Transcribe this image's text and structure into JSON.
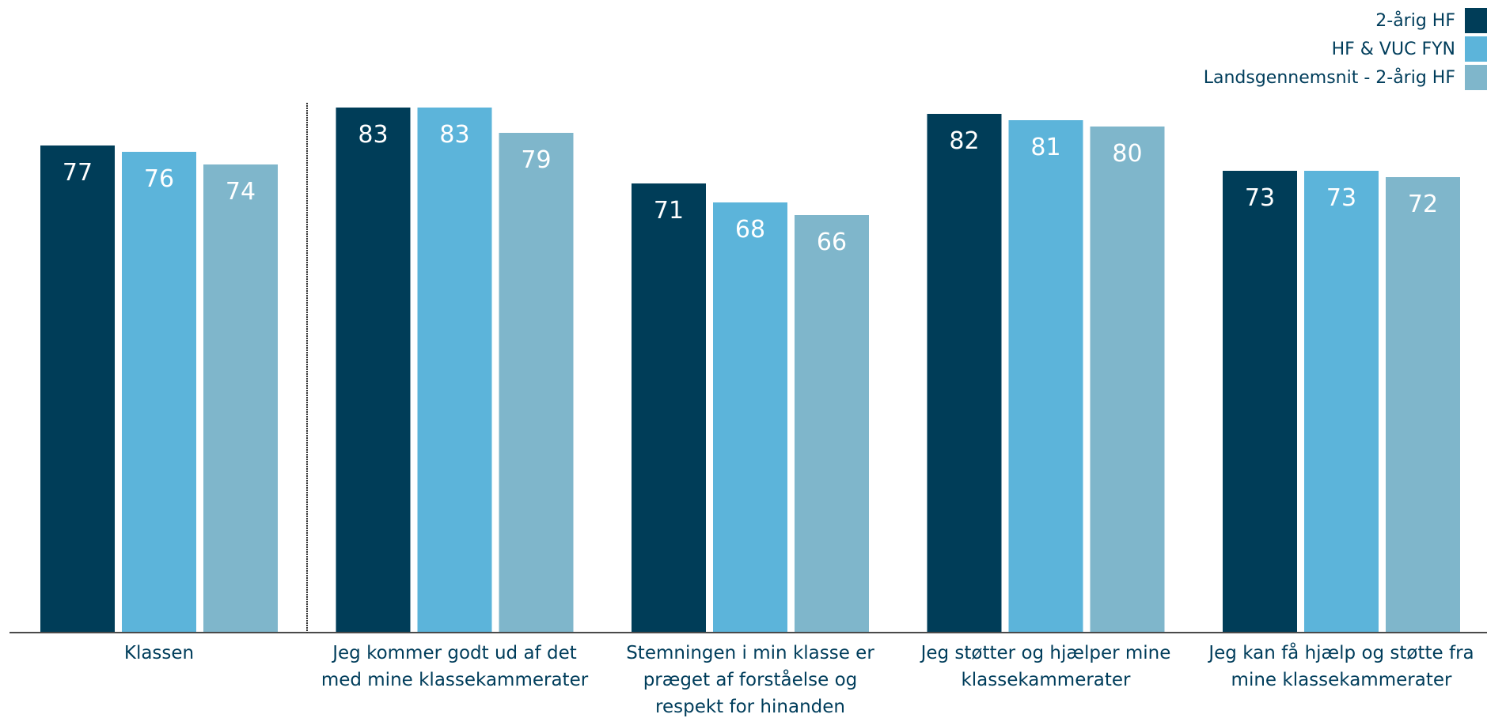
{
  "chart_data": {
    "type": "bar",
    "categories": [
      [
        "Klassen"
      ],
      [
        "Jeg kommer godt ud af det",
        "med mine klassekammerater"
      ],
      [
        "Stemningen i min klasse er",
        "præget af forståelse og",
        "respekt for hinanden"
      ],
      [
        "Jeg støtter og hjælper mine",
        "klassekammerater"
      ],
      [
        "Jeg kan få hjælp og støtte fra",
        "mine klassekammerater"
      ]
    ],
    "series": [
      {
        "name": "2-årig HF",
        "color": "#003d58",
        "values": [
          77,
          83,
          71,
          82,
          73
        ]
      },
      {
        "name": "HF & VUC FYN",
        "color": "#5cb4da",
        "values": [
          76,
          83,
          68,
          81,
          73
        ]
      },
      {
        "name": "Landsgennemsnit - 2-årig HF",
        "color": "#7fb6cb",
        "values": [
          74,
          79,
          66,
          80,
          72
        ]
      }
    ],
    "ylim": [
      0,
      100
    ],
    "legend_position": "top-right",
    "grid": false
  }
}
